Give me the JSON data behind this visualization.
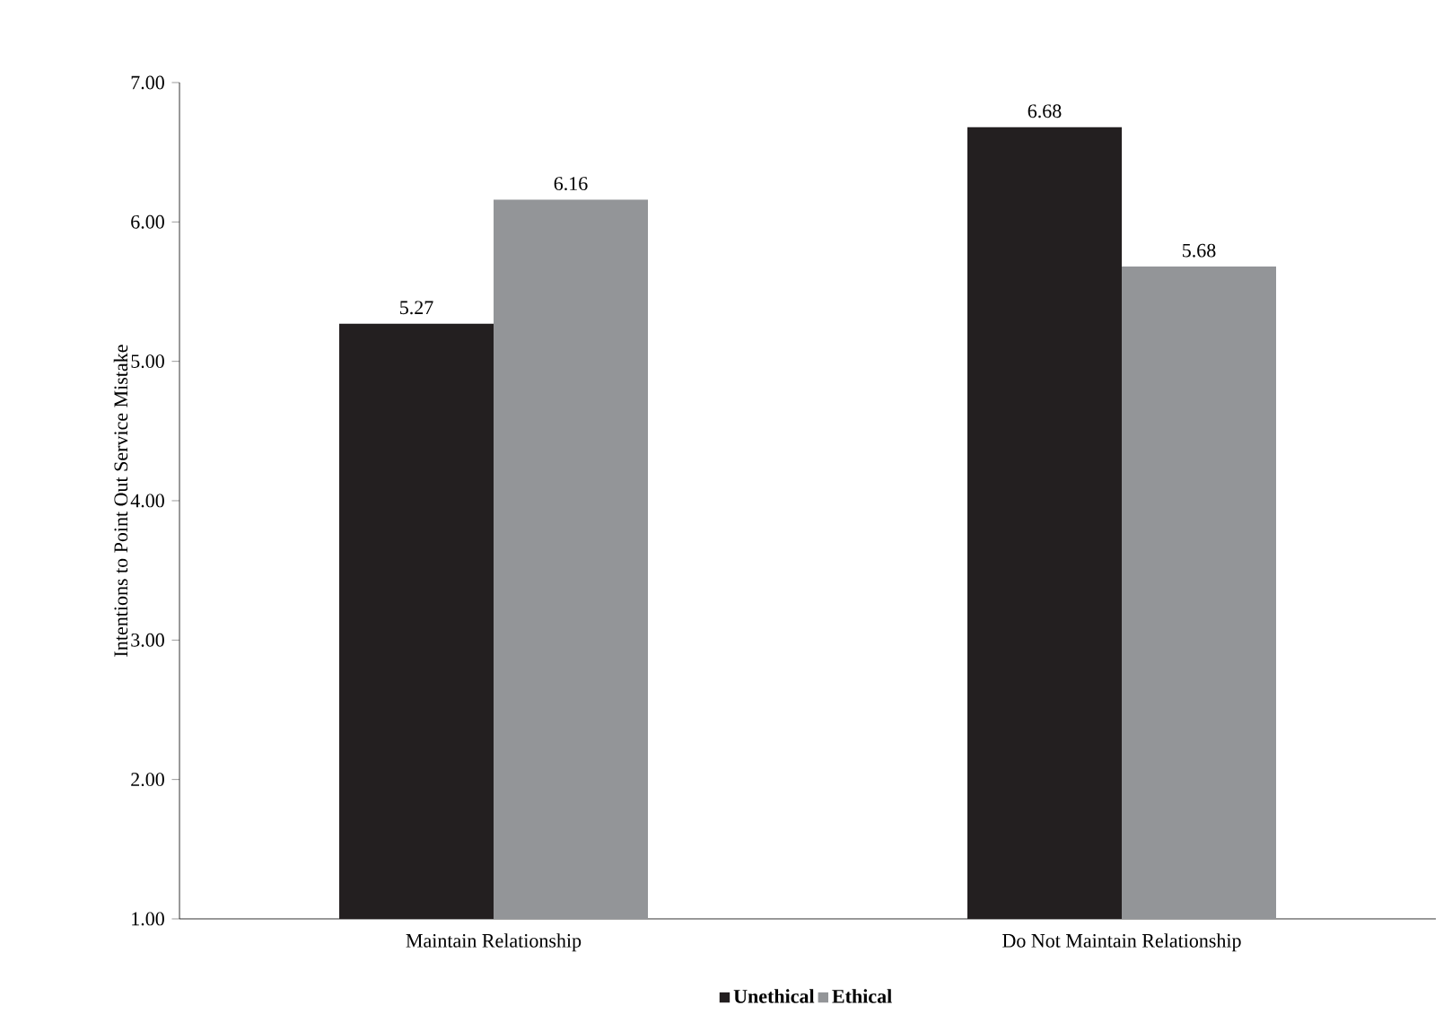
{
  "chart_data": {
    "type": "bar",
    "ylabel": "Intentions to Point Out Service Mistake",
    "categories": [
      "Maintain Relationship",
      "Do Not Maintain Relationship"
    ],
    "series": [
      {
        "name": "Unethical",
        "color": "#231f20",
        "values": [
          5.27,
          6.68
        ]
      },
      {
        "name": "Ethical",
        "color": "#939598",
        "values": [
          6.16,
          5.68
        ]
      }
    ],
    "ylim": [
      1,
      7
    ],
    "yticks": [
      {
        "value": 1,
        "label": "1.00"
      },
      {
        "value": 2,
        "label": "2.00"
      },
      {
        "value": 3,
        "label": "3.00"
      },
      {
        "value": 4,
        "label": "4.00"
      },
      {
        "value": 5,
        "label": "5.00"
      },
      {
        "value": 6,
        "label": "6.00"
      },
      {
        "value": 7,
        "label": "7.00"
      }
    ],
    "data_labels": true,
    "legend": "bottom",
    "grid": false
  }
}
